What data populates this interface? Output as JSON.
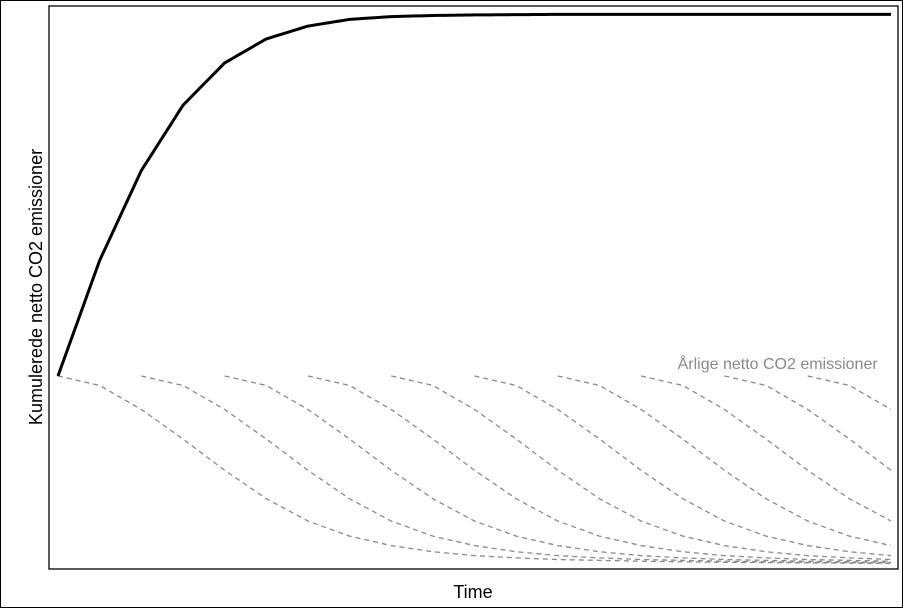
{
  "chart_data": {
    "type": "line",
    "title": "",
    "xlabel": "Time",
    "ylabel": "Kumulerede netto CO2 emissioner",
    "xlim": [
      0,
      100
    ],
    "ylim": [
      0,
      100
    ],
    "grid": false,
    "legend": "none",
    "annotations": [
      {
        "text": "Årlige netto CO2 emissioner",
        "x": 99,
        "y": 36
      }
    ],
    "series": [
      {
        "style": "solid",
        "color": "#000000",
        "x": [
          0,
          5,
          10,
          15,
          20,
          25,
          30,
          35,
          40,
          45,
          50,
          60,
          70,
          80,
          90,
          100
        ],
        "y": [
          33.7,
          54.4,
          70.5,
          82.2,
          89.8,
          94.1,
          96.4,
          97.6,
          98.1,
          98.3,
          98.4,
          98.5,
          98.5,
          98.5,
          98.5,
          98.5
        ]
      }
    ],
    "dashed_series": {
      "color": "#8a8a8a",
      "style": "dashed",
      "start_x": [
        0,
        10,
        20,
        30,
        40,
        50,
        60,
        70,
        80,
        90
      ],
      "start_y": 33.7,
      "x": [
        0,
        5,
        10,
        15,
        20,
        25,
        30,
        35,
        40,
        45,
        50,
        55,
        60,
        70,
        80,
        90,
        100
      ],
      "y": [
        33.7,
        32.0,
        27.7,
        22.4,
        16.8,
        11.7,
        7.7,
        5.0,
        3.3,
        2.2,
        1.5,
        1.1,
        0.8,
        0.5,
        0.3,
        0.2,
        0.1
      ]
    }
  }
}
